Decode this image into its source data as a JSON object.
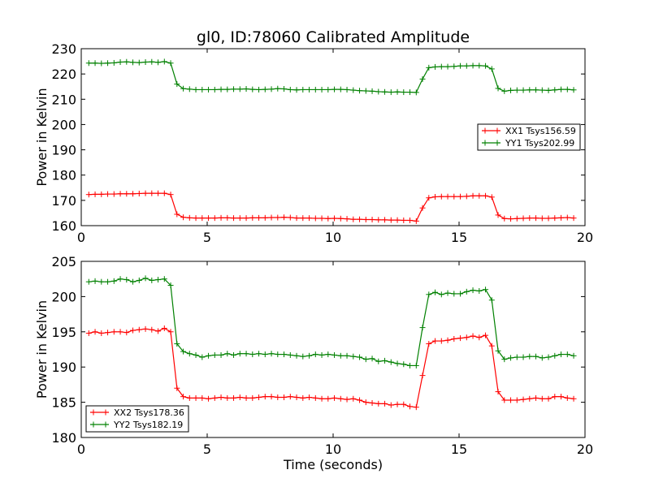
{
  "title": "gl0, ID:78060 Calibrated Amplitude",
  "chart_data": [
    {
      "type": "line",
      "title": "gl0, ID:78060 Calibrated Amplitude",
      "xlabel": "",
      "ylabel": "Power in Kelvin",
      "xlim": [
        0,
        20
      ],
      "ylim": [
        160,
        230
      ],
      "xticks": [
        0,
        5,
        10,
        15,
        20
      ],
      "yticks": [
        160,
        170,
        180,
        190,
        200,
        210,
        220,
        230
      ],
      "grid": false,
      "legend_position": "right",
      "series": [
        {
          "name": "XX1 Tsys156.59",
          "color": "#ff0000",
          "x": [
            0.3,
            0.55,
            0.8,
            1.05,
            1.3,
            1.55,
            1.8,
            2.05,
            2.3,
            2.55,
            2.8,
            3.05,
            3.3,
            3.55,
            3.8,
            4.05,
            4.3,
            4.55,
            4.8,
            5.05,
            5.3,
            5.55,
            5.8,
            6.05,
            6.3,
            6.55,
            6.8,
            7.05,
            7.3,
            7.55,
            7.8,
            8.05,
            8.3,
            8.55,
            8.8,
            9.05,
            9.3,
            9.55,
            9.8,
            10.05,
            10.3,
            10.55,
            10.8,
            11.05,
            11.3,
            11.55,
            11.8,
            12.05,
            12.3,
            12.55,
            12.8,
            13.05,
            13.3,
            13.55,
            13.8,
            14.05,
            14.3,
            14.55,
            14.8,
            15.05,
            15.3,
            15.55,
            15.8,
            16.05,
            16.3,
            16.55,
            16.8,
            17.05,
            17.3,
            17.55,
            17.8,
            18.05,
            18.3,
            18.55,
            18.8,
            19.05,
            19.3,
            19.55
          ],
          "values": [
            172.3,
            172.4,
            172.4,
            172.5,
            172.5,
            172.6,
            172.6,
            172.6,
            172.7,
            172.8,
            172.8,
            172.8,
            172.8,
            172.3,
            164.5,
            163.3,
            163.1,
            163.0,
            163.0,
            163.0,
            163.0,
            163.1,
            163.1,
            163.0,
            163.0,
            163.0,
            163.1,
            163.1,
            163.1,
            163.2,
            163.2,
            163.3,
            163.2,
            163.0,
            163.0,
            163.0,
            162.9,
            162.9,
            162.8,
            162.9,
            162.8,
            162.7,
            162.5,
            162.5,
            162.4,
            162.4,
            162.3,
            162.3,
            162.2,
            162.2,
            162.1,
            162.1,
            161.8,
            167.0,
            171.0,
            171.4,
            171.5,
            171.5,
            171.5,
            171.5,
            171.6,
            171.8,
            171.8,
            171.8,
            171.3,
            164.2,
            162.8,
            162.7,
            162.8,
            162.9,
            163.0,
            163.0,
            162.9,
            162.9,
            163.0,
            163.1,
            163.2,
            163.0
          ]
        },
        {
          "name": "YY1 Tsys202.99",
          "color": "#008000",
          "x": [
            0.3,
            0.55,
            0.8,
            1.05,
            1.3,
            1.55,
            1.8,
            2.05,
            2.3,
            2.55,
            2.8,
            3.05,
            3.3,
            3.55,
            3.8,
            4.05,
            4.3,
            4.55,
            4.8,
            5.05,
            5.3,
            5.55,
            5.8,
            6.05,
            6.3,
            6.55,
            6.8,
            7.05,
            7.3,
            7.55,
            7.8,
            8.05,
            8.3,
            8.55,
            8.8,
            9.05,
            9.3,
            9.55,
            9.8,
            10.05,
            10.3,
            10.55,
            10.8,
            11.05,
            11.3,
            11.55,
            11.8,
            12.05,
            12.3,
            12.55,
            12.8,
            13.05,
            13.3,
            13.55,
            13.8,
            14.05,
            14.3,
            14.55,
            14.8,
            15.05,
            15.3,
            15.55,
            15.8,
            16.05,
            16.3,
            16.55,
            16.8,
            17.05,
            17.3,
            17.55,
            17.8,
            18.05,
            18.3,
            18.55,
            18.8,
            19.05,
            19.3,
            19.55
          ],
          "values": [
            224.3,
            224.3,
            224.2,
            224.3,
            224.4,
            224.7,
            224.8,
            224.6,
            224.5,
            224.7,
            224.8,
            224.6,
            224.9,
            224.3,
            216.0,
            214.2,
            214.0,
            213.8,
            213.8,
            213.8,
            213.8,
            213.9,
            213.9,
            214.0,
            214.0,
            214.1,
            213.9,
            213.8,
            213.9,
            214.0,
            214.2,
            214.1,
            213.8,
            213.7,
            213.8,
            213.8,
            213.8,
            213.8,
            213.8,
            213.9,
            213.9,
            213.8,
            213.6,
            213.4,
            213.3,
            213.2,
            213.0,
            212.9,
            212.8,
            212.9,
            212.8,
            212.8,
            212.7,
            218.0,
            222.5,
            222.8,
            222.9,
            222.9,
            223.0,
            223.2,
            223.2,
            223.3,
            223.3,
            223.2,
            222.0,
            214.3,
            213.2,
            213.5,
            213.6,
            213.6,
            213.7,
            213.7,
            213.6,
            213.5,
            213.7,
            213.9,
            213.9,
            213.7
          ]
        }
      ]
    },
    {
      "type": "line",
      "title": "",
      "xlabel": "Time (seconds)",
      "ylabel": "Power in Kelvin",
      "xlim": [
        0,
        20
      ],
      "ylim": [
        180,
        205
      ],
      "xticks": [
        0,
        5,
        10,
        15,
        20
      ],
      "yticks": [
        180,
        185,
        190,
        195,
        200,
        205
      ],
      "grid": false,
      "legend_position": "lower-left",
      "series": [
        {
          "name": "XX2 Tsys178.36",
          "color": "#ff0000",
          "x": [
            0.3,
            0.55,
            0.8,
            1.05,
            1.3,
            1.55,
            1.8,
            2.05,
            2.3,
            2.55,
            2.8,
            3.05,
            3.3,
            3.55,
            3.8,
            4.05,
            4.3,
            4.55,
            4.8,
            5.05,
            5.3,
            5.55,
            5.8,
            6.05,
            6.3,
            6.55,
            6.8,
            7.05,
            7.3,
            7.55,
            7.8,
            8.05,
            8.3,
            8.55,
            8.8,
            9.05,
            9.3,
            9.55,
            9.8,
            10.05,
            10.3,
            10.55,
            10.8,
            11.05,
            11.3,
            11.55,
            11.8,
            12.05,
            12.3,
            12.55,
            12.8,
            13.05,
            13.3,
            13.55,
            13.8,
            14.05,
            14.3,
            14.55,
            14.8,
            15.05,
            15.3,
            15.55,
            15.8,
            16.05,
            16.3,
            16.55,
            16.8,
            17.05,
            17.3,
            17.55,
            17.8,
            18.05,
            18.3,
            18.55,
            18.8,
            19.05,
            19.3,
            19.55
          ],
          "values": [
            194.8,
            195.0,
            194.8,
            194.9,
            195.0,
            195.0,
            194.9,
            195.2,
            195.3,
            195.4,
            195.3,
            195.1,
            195.5,
            195.0,
            187.0,
            185.8,
            185.6,
            185.6,
            185.6,
            185.5,
            185.6,
            185.7,
            185.6,
            185.6,
            185.7,
            185.6,
            185.6,
            185.7,
            185.8,
            185.8,
            185.7,
            185.7,
            185.8,
            185.7,
            185.6,
            185.7,
            185.6,
            185.5,
            185.5,
            185.6,
            185.5,
            185.4,
            185.5,
            185.3,
            185.0,
            184.9,
            184.8,
            184.8,
            184.6,
            184.7,
            184.7,
            184.4,
            184.3,
            188.8,
            193.3,
            193.7,
            193.7,
            193.8,
            194.0,
            194.1,
            194.2,
            194.4,
            194.2,
            194.5,
            193.0,
            186.5,
            185.3,
            185.3,
            185.3,
            185.4,
            185.5,
            185.6,
            185.5,
            185.5,
            185.8,
            185.8,
            185.6,
            185.5
          ]
        },
        {
          "name": "YY2 Tsys182.19",
          "color": "#008000",
          "x": [
            0.3,
            0.55,
            0.8,
            1.05,
            1.3,
            1.55,
            1.8,
            2.05,
            2.3,
            2.55,
            2.8,
            3.05,
            3.3,
            3.55,
            3.8,
            4.05,
            4.3,
            4.55,
            4.8,
            5.05,
            5.3,
            5.55,
            5.8,
            6.05,
            6.3,
            6.55,
            6.8,
            7.05,
            7.3,
            7.55,
            7.8,
            8.05,
            8.3,
            8.55,
            8.8,
            9.05,
            9.3,
            9.55,
            9.8,
            10.05,
            10.3,
            10.55,
            10.8,
            11.05,
            11.3,
            11.55,
            11.8,
            12.05,
            12.3,
            12.55,
            12.8,
            13.05,
            13.3,
            13.55,
            13.8,
            14.05,
            14.3,
            14.55,
            14.8,
            15.05,
            15.3,
            15.55,
            15.8,
            16.05,
            16.3,
            16.55,
            16.8,
            17.05,
            17.3,
            17.55,
            17.8,
            18.05,
            18.3,
            18.55,
            18.8,
            19.05,
            19.3,
            19.55
          ],
          "values": [
            202.1,
            202.2,
            202.1,
            202.1,
            202.2,
            202.5,
            202.4,
            202.1,
            202.3,
            202.6,
            202.3,
            202.4,
            202.5,
            201.6,
            193.3,
            192.2,
            191.9,
            191.7,
            191.4,
            191.6,
            191.7,
            191.7,
            191.9,
            191.7,
            191.9,
            191.9,
            191.8,
            191.9,
            191.8,
            191.9,
            191.8,
            191.8,
            191.7,
            191.6,
            191.5,
            191.6,
            191.8,
            191.7,
            191.8,
            191.7,
            191.6,
            191.6,
            191.5,
            191.4,
            191.1,
            191.2,
            190.8,
            190.9,
            190.7,
            190.5,
            190.4,
            190.2,
            190.2,
            195.6,
            200.3,
            200.6,
            200.3,
            200.5,
            200.4,
            200.4,
            200.7,
            200.9,
            200.8,
            201.0,
            199.5,
            192.3,
            191.1,
            191.3,
            191.4,
            191.4,
            191.5,
            191.5,
            191.3,
            191.4,
            191.6,
            191.8,
            191.8,
            191.6
          ]
        }
      ]
    }
  ]
}
